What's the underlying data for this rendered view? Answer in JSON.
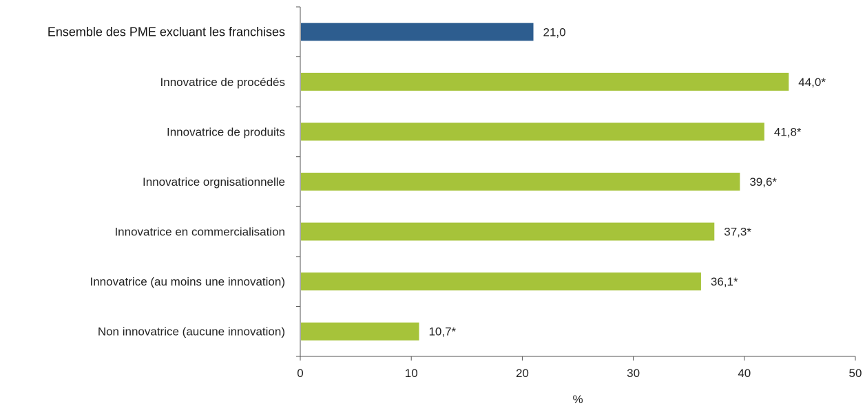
{
  "chart_data": {
    "type": "bar",
    "orientation": "horizontal",
    "categories": [
      "Ensemble des PME excluant les franchises",
      "Innovatrice de procédés",
      "Innovatrice de produits",
      "Innovatrice orgnisationnelle",
      "Innovatrice en commercialisation",
      "Innovatrice (au moins une innovation)",
      "Non innovatrice (aucune innovation)"
    ],
    "values": [
      21.0,
      44.0,
      41.8,
      39.6,
      37.3,
      36.1,
      10.7
    ],
    "value_labels": [
      "21,0",
      "44,0*",
      "41,8*",
      "39,6*",
      "37,3*",
      "36,1*",
      "10,7*"
    ],
    "bar_colors": [
      "#2d5d8f",
      "#a6c33a",
      "#a6c33a",
      "#a6c33a",
      "#a6c33a",
      "#a6c33a",
      "#a6c33a"
    ],
    "highlight_index": 0,
    "xlim": [
      0,
      50
    ],
    "xticks": [
      0,
      10,
      20,
      30,
      40,
      50
    ],
    "xlabel": "%",
    "ylabel": "",
    "title": "",
    "grid": false,
    "legend": "none"
  }
}
